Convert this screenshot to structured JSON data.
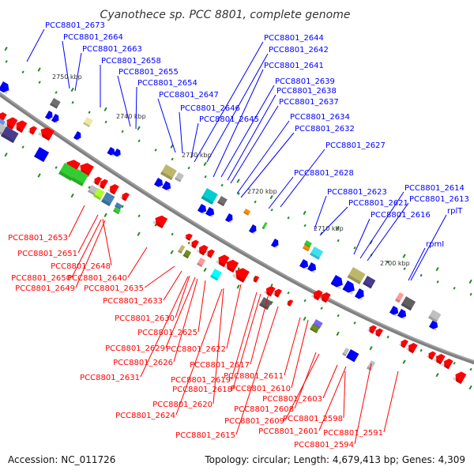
{
  "title": "Cyanothece sp. PCC 8801, complete genome",
  "colors": {
    "forward": "#0000ff",
    "reverse": "#ff0000",
    "backbone": "#808080",
    "tick": "#228b22"
  },
  "forward_labels": [
    "PCC8801_2673",
    "PCC8801_2664",
    "PCC8801_2663",
    "PCC8801_2658",
    "PCC8801_2655",
    "PCC8801_2654",
    "PCC8801_2647",
    "PCC8801_2646",
    "PCC8801_2645",
    "PCC8801_2644",
    "PCC8801_2642",
    "PCC8801_2641",
    "PCC8801_2639",
    "PCC8801_2638",
    "PCC8801_2637",
    "PCC8801_2634",
    "PCC8801_2632",
    "PCC8801_2627",
    "PCC8801_2628",
    "PCC8801_2623",
    "PCC8801_2621",
    "PCC8801_2614",
    "PCC8801_2613",
    "PCC8801_2616",
    "rplT",
    "rpmI"
  ],
  "reverse_labels": [
    "PCC8801_2653",
    "PCC8801_2651",
    "PCC8801_2648",
    "PCC8801_2650",
    "PCC8801_2649",
    "PCC8801_2640",
    "PCC8801_2635",
    "PCC8801_2633",
    "PCC8801_2630",
    "PCC8801_2625",
    "PCC8801_2629",
    "PCC8801_2622",
    "PCC8801_2626",
    "PCC8801_2617",
    "PCC8801_2631",
    "PCC8801_2619",
    "PCC8801_2618",
    "PCC8801_2611",
    "PCC8801_2610",
    "PCC8801_2620",
    "PCC8801_2603",
    "PCC8801_2608",
    "PCC8801_2624",
    "PCC8801_2609",
    "PCC8801_2598",
    "PCC8801_2601",
    "PCC8801_2591",
    "PCC8801_2594",
    "PCC8801_2615"
  ],
  "kbp_ticks": [
    "2750 kbp",
    "2740 kbp",
    "2730 kbp",
    "2720 kbp",
    "2710 kbp",
    "2700 kbp"
  ],
  "footer": {
    "accession": "Accession: NC_011726",
    "summary": "Topology: circular; Length: 4,679,413 bp; Genes: 4,309"
  }
}
